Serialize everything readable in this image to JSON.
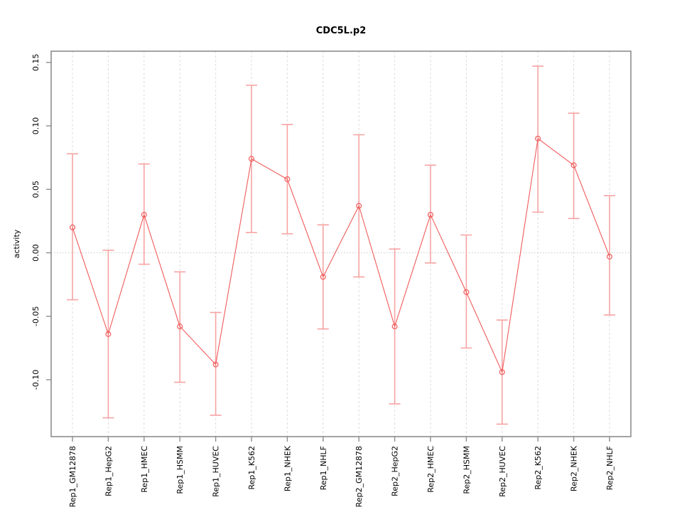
{
  "chart_data": {
    "type": "line",
    "title": "CDC5L.p2",
    "xlabel": "",
    "ylabel": "activity",
    "legend": "none",
    "grid": "vertical-dashed-at-categories, horizontal-dotted-at-zero",
    "categories": [
      "Rep1_GM12878",
      "Rep1_HepG2",
      "Rep1_HMEC",
      "Rep1_HSMM",
      "Rep1_HUVEC",
      "Rep1_K562",
      "Rep1_NHEK",
      "Rep1_NHLF",
      "Rep2_GM12878",
      "Rep2_HepG2",
      "Rep2_HMEC",
      "Rep2_HSMM",
      "Rep2_HUVEC",
      "Rep2_K562",
      "Rep2_NHEK",
      "Rep2_NHLF"
    ],
    "series": [
      {
        "name": "activity",
        "marker": "open-circle",
        "values": [
          0.02,
          -0.064,
          0.03,
          -0.058,
          -0.088,
          0.074,
          0.058,
          -0.019,
          0.037,
          -0.058,
          0.03,
          -0.031,
          -0.094,
          0.09,
          0.069,
          -0.003
        ],
        "error_lower": [
          -0.037,
          -0.13,
          -0.009,
          -0.102,
          -0.128,
          0.016,
          0.015,
          -0.06,
          -0.019,
          -0.119,
          -0.008,
          -0.075,
          -0.135,
          0.032,
          0.027,
          -0.049
        ],
        "error_upper": [
          0.078,
          0.002,
          0.07,
          -0.015,
          -0.047,
          0.132,
          0.101,
          0.022,
          0.093,
          0.003,
          0.069,
          0.014,
          -0.053,
          0.147,
          0.11,
          0.045
        ]
      }
    ],
    "yticks": [
      0.15,
      0.1,
      0.05,
      0.0,
      -0.05,
      -0.1
    ],
    "ytick_labels": [
      "0.15",
      "0.10",
      "0.05",
      "0.00",
      "-0.05",
      "-0.10"
    ],
    "ylim": [
      -0.145,
      0.16
    ],
    "colors": {
      "line": "#f05a5a",
      "point": "#f05a5a",
      "error_bar": "#f7a3a3",
      "gridline": "#dcdcdc",
      "zero_line": "#c9c9c9",
      "frame": "#8e8e8e",
      "tick": "#8e8e8e",
      "text": "#000000"
    }
  }
}
